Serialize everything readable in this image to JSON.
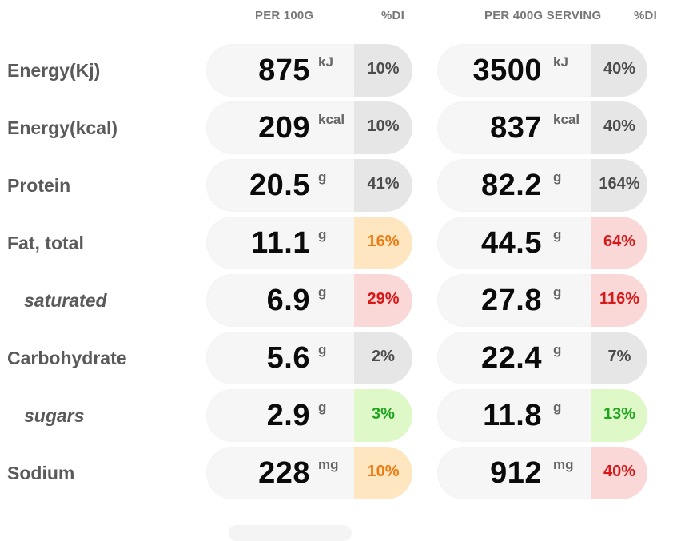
{
  "headers": {
    "per_100g": "PER 100G",
    "di_1": "%DI",
    "per_serving": "PER 400G SERVING",
    "di_2": "%DI"
  },
  "rows": [
    {
      "label": "Energy(Kj)",
      "sub": false,
      "per100": {
        "value": "875",
        "unit": "kJ",
        "di": "10%",
        "tone": "neutral"
      },
      "serving": {
        "value": "3500",
        "unit": "kJ",
        "di": "40%",
        "tone": "neutral"
      }
    },
    {
      "label": "Energy(kcal)",
      "sub": false,
      "per100": {
        "value": "209",
        "unit": "kcal",
        "di": "10%",
        "tone": "neutral"
      },
      "serving": {
        "value": "837",
        "unit": "kcal",
        "di": "40%",
        "tone": "neutral"
      }
    },
    {
      "label": "Protein",
      "sub": false,
      "per100": {
        "value": "20.5",
        "unit": "g",
        "di": "41%",
        "tone": "neutral"
      },
      "serving": {
        "value": "82.2",
        "unit": "g",
        "di": "164%",
        "tone": "neutral"
      }
    },
    {
      "label": "Fat, total",
      "sub": false,
      "per100": {
        "value": "11.1",
        "unit": "g",
        "di": "16%",
        "tone": "orange"
      },
      "serving": {
        "value": "44.5",
        "unit": "g",
        "di": "64%",
        "tone": "red"
      }
    },
    {
      "label": "saturated",
      "sub": true,
      "per100": {
        "value": "6.9",
        "unit": "g",
        "di": "29%",
        "tone": "red"
      },
      "serving": {
        "value": "27.8",
        "unit": "g",
        "di": "116%",
        "tone": "red"
      }
    },
    {
      "label": "Carbohydrate",
      "sub": false,
      "per100": {
        "value": "5.6",
        "unit": "g",
        "di": "2%",
        "tone": "neutral"
      },
      "serving": {
        "value": "22.4",
        "unit": "g",
        "di": "7%",
        "tone": "neutral"
      }
    },
    {
      "label": "sugars",
      "sub": true,
      "per100": {
        "value": "2.9",
        "unit": "g",
        "di": "3%",
        "tone": "green"
      },
      "serving": {
        "value": "11.8",
        "unit": "g",
        "di": "13%",
        "tone": "green"
      }
    },
    {
      "label": "Sodium",
      "sub": false,
      "per100": {
        "value": "228",
        "unit": "mg",
        "di": "10%",
        "tone": "orange"
      },
      "serving": {
        "value": "912",
        "unit": "mg",
        "di": "40%",
        "tone": "red"
      }
    }
  ],
  "tone_colors": {
    "neutral": "#4c4c4c",
    "orange": "#ee7b11",
    "red": "#d71818",
    "green": "#1fa51f"
  }
}
